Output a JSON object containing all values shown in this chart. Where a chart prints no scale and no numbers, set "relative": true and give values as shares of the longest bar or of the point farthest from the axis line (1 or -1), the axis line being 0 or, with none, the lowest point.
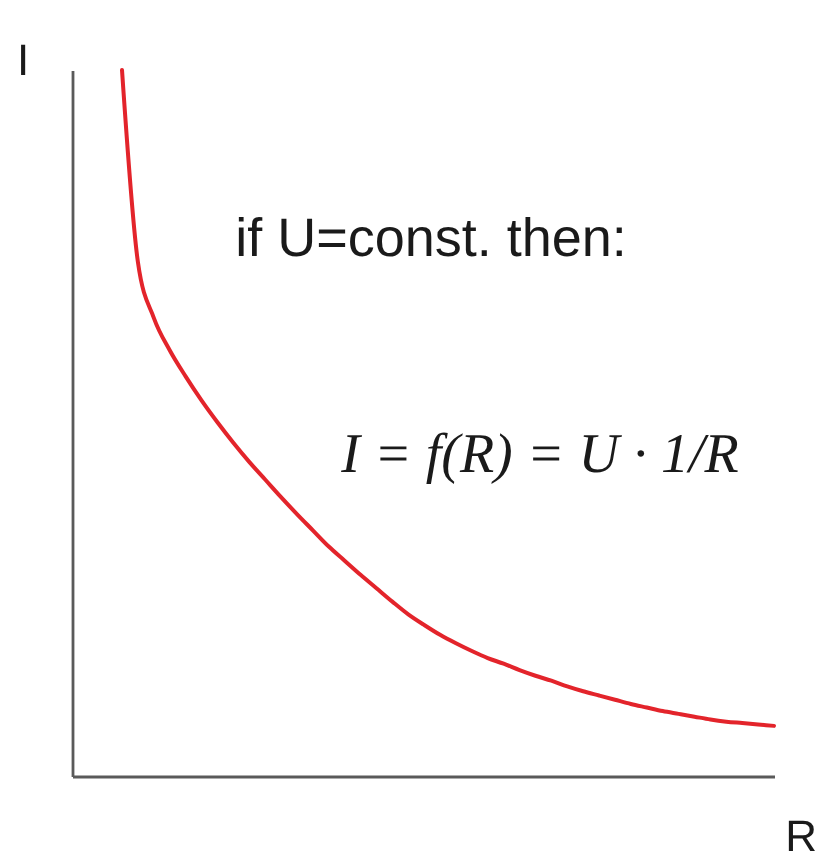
{
  "chart_data": {
    "type": "line",
    "xlabel": "R",
    "ylabel": "I",
    "relative": true,
    "line_style": "solid",
    "categories": [
      null,
      null,
      null,
      null,
      null,
      null,
      null,
      null,
      null,
      null,
      null,
      null,
      null,
      null,
      null,
      null,
      null,
      null,
      null,
      null,
      null,
      null,
      null,
      null,
      null,
      null,
      null,
      null,
      null,
      null,
      null,
      null,
      null,
      null,
      null,
      null,
      null,
      null,
      null,
      null,
      null,
      null
    ],
    "series": [
      {
        "color": "#e3242b",
        "values": [
          1,
          0.728,
          0.649,
          0.603,
          0.566,
          0.532,
          0.501,
          0.472,
          0.445,
          0.42,
          0.395,
          0.371,
          0.348,
          0.325,
          0.305,
          0.285,
          0.266,
          0.247,
          0.229,
          0.214,
          0.2,
          0.188,
          0.177,
          0.167,
          0.159,
          0.15,
          0.142,
          0.135,
          0.127,
          0.12,
          0.114,
          0.108,
          0.102,
          0.097,
          0.092,
          0.088,
          0.084,
          0.08,
          0.077,
          0.075,
          0.073,
          0.071
        ]
      }
    ],
    "annotations": [
      "if U=const. then:",
      "I = f(R) = U · 1/R"
    ]
  }
}
